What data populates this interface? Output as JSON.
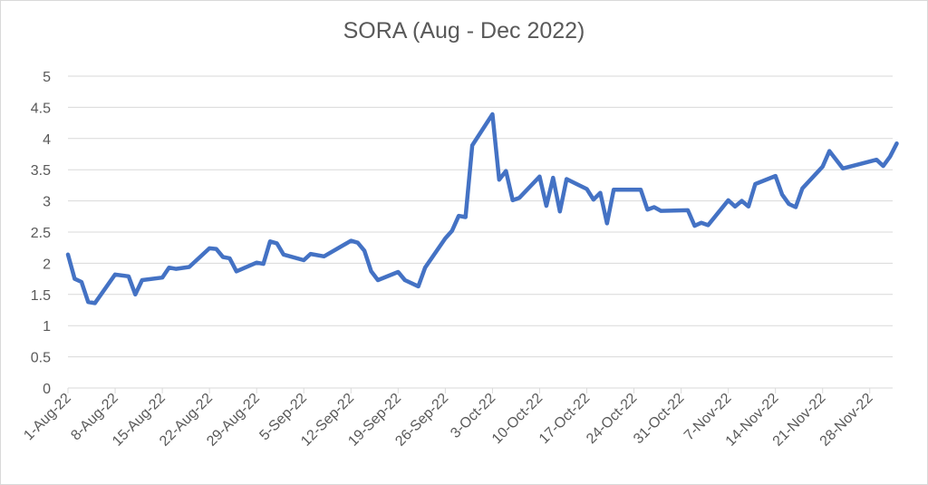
{
  "chart_data": {
    "type": "line",
    "title": "SORA (Aug - Dec 2022)",
    "xlabel": "",
    "ylabel": "",
    "ylim": [
      0,
      5
    ],
    "y_ticks": [
      "0",
      "0.5",
      "1",
      "1.5",
      "2",
      "2.5",
      "3",
      "3.5",
      "4",
      "4.5",
      "5"
    ],
    "x_range_days": [
      0,
      132
    ],
    "x_ticks": [
      {
        "day": 0,
        "label": "1-Aug-22"
      },
      {
        "day": 7,
        "label": "8-Aug-22"
      },
      {
        "day": 14,
        "label": "15-Aug-22"
      },
      {
        "day": 21,
        "label": "22-Aug-22"
      },
      {
        "day": 28,
        "label": "29-Aug-22"
      },
      {
        "day": 35,
        "label": "5-Sep-22"
      },
      {
        "day": 42,
        "label": "12-Sep-22"
      },
      {
        "day": 49,
        "label": "19-Sep-22"
      },
      {
        "day": 56,
        "label": "26-Sep-22"
      },
      {
        "day": 63,
        "label": "3-Oct-22"
      },
      {
        "day": 70,
        "label": "10-Oct-22"
      },
      {
        "day": 77,
        "label": "17-Oct-22"
      },
      {
        "day": 84,
        "label": "24-Oct-22"
      },
      {
        "day": 91,
        "label": "31-Oct-22"
      },
      {
        "day": 98,
        "label": "7-Nov-22"
      },
      {
        "day": 105,
        "label": "14-Nov-22"
      },
      {
        "day": 112,
        "label": "21-Nov-22"
      },
      {
        "day": 119,
        "label": "28-Nov-22"
      }
    ],
    "grid": true,
    "legend": "none",
    "series": [
      {
        "color": "#4472c4",
        "points": [
          [
            0,
            2.14
          ],
          [
            1,
            1.75
          ],
          [
            2,
            1.7
          ],
          [
            3,
            1.38
          ],
          [
            4,
            1.36
          ],
          [
            7,
            1.82
          ],
          [
            9,
            1.79
          ],
          [
            10,
            1.5
          ],
          [
            11,
            1.73
          ],
          [
            14,
            1.77
          ],
          [
            15,
            1.93
          ],
          [
            16,
            1.91
          ],
          [
            18,
            1.94
          ],
          [
            21,
            2.24
          ],
          [
            22,
            2.23
          ],
          [
            23,
            2.1
          ],
          [
            24,
            2.08
          ],
          [
            25,
            1.87
          ],
          [
            28,
            2.01
          ],
          [
            29,
            1.99
          ],
          [
            30,
            2.35
          ],
          [
            31,
            2.32
          ],
          [
            32,
            2.14
          ],
          [
            35,
            2.05
          ],
          [
            36,
            2.15
          ],
          [
            38,
            2.11
          ],
          [
            42,
            2.36
          ],
          [
            43,
            2.33
          ],
          [
            44,
            2.2
          ],
          [
            45,
            1.87
          ],
          [
            46,
            1.73
          ],
          [
            49,
            1.86
          ],
          [
            50,
            1.73
          ],
          [
            52,
            1.63
          ],
          [
            53,
            1.93
          ],
          [
            56,
            2.4
          ],
          [
            57,
            2.52
          ],
          [
            58,
            2.76
          ],
          [
            59,
            2.74
          ],
          [
            60,
            3.89
          ],
          [
            63,
            4.39
          ],
          [
            64,
            3.34
          ],
          [
            65,
            3.48
          ],
          [
            66,
            3.01
          ],
          [
            67,
            3.05
          ],
          [
            70,
            3.39
          ],
          [
            71,
            2.92
          ],
          [
            72,
            3.37
          ],
          [
            73,
            2.83
          ],
          [
            74,
            3.35
          ],
          [
            77,
            3.19
          ],
          [
            78,
            3.02
          ],
          [
            79,
            3.13
          ],
          [
            80,
            2.64
          ],
          [
            81,
            3.18
          ],
          [
            85,
            3.18
          ],
          [
            86,
            2.86
          ],
          [
            87,
            2.9
          ],
          [
            88,
            2.84
          ],
          [
            92,
            2.85
          ],
          [
            93,
            2.6
          ],
          [
            94,
            2.65
          ],
          [
            95,
            2.61
          ],
          [
            98,
            3.01
          ],
          [
            99,
            2.91
          ],
          [
            100,
            3.0
          ],
          [
            101,
            2.91
          ],
          [
            102,
            3.27
          ],
          [
            105,
            3.4
          ],
          [
            106,
            3.1
          ],
          [
            107,
            2.95
          ],
          [
            108,
            2.9
          ],
          [
            109,
            3.2
          ],
          [
            112,
            3.55
          ],
          [
            113,
            3.8
          ],
          [
            115,
            3.52
          ],
          [
            120,
            3.66
          ],
          [
            121,
            3.56
          ],
          [
            122,
            3.71
          ],
          [
            123,
            3.92
          ]
        ]
      }
    ]
  }
}
